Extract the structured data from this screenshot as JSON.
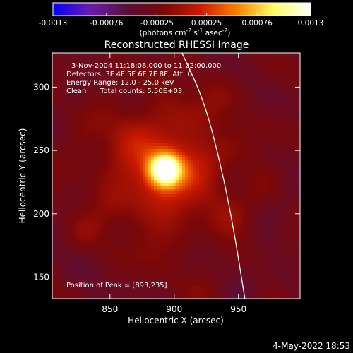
{
  "chart_data": {
    "type": "heatmap",
    "title": "Reconstructed RHESSI Image",
    "xlabel": "Heliocentric X (arcsec)",
    "ylabel": "Heliocentric Y (arcsec)",
    "xlim": [
      805,
      998
    ],
    "ylim": [
      133,
      327
    ],
    "x_ticks": [
      850,
      900,
      950
    ],
    "y_ticks": [
      150,
      200,
      250,
      300
    ],
    "x_tick_labels": [
      "850",
      "900",
      "950"
    ],
    "y_tick_labels": [
      "150",
      "200",
      "250",
      "300"
    ],
    "colorbar": {
      "min": -0.0013,
      "max": 0.0013,
      "ticks": [
        -0.0013,
        -0.00076,
        -0.00025,
        0.00025,
        0.00076,
        0.0013
      ],
      "tick_labels": [
        "-0.0013",
        "-0.00076",
        "-0.00025",
        "0.00025",
        "0.00076",
        "0.0013"
      ],
      "units_label": "(photons cm",
      "units_exp1": "-2",
      "units_mid": " s",
      "units_exp2": "-1",
      "units_end": " asec",
      "units_exp3": "-2",
      "units_close": ")",
      "stops": [
        "#0000ff",
        "#6a1bb0",
        "#5a0f3a",
        "#7a0808",
        "#cc1a00",
        "#ff7f00",
        "#ffff66",
        "#ffffff"
      ]
    },
    "annotations": {
      "time_range": "3-Nov-2004 11:18:08.000 to 11:22:00.000",
      "detectors": "Detectors: 3F 4F 5F 6F 7F 8F, Att: 0",
      "energy": "Energy Range: 12.0 - 25.0 keV",
      "clean": "Clean",
      "counts": "Total counts: 5.50E+03",
      "peak": "Position of Peak = [893,235]"
    },
    "peak": {
      "x": 893,
      "y": 235
    },
    "limb": [
      {
        "x": 906,
        "y": 327
      },
      {
        "x": 923,
        "y": 290
      },
      {
        "x": 936,
        "y": 240
      },
      {
        "x": 946,
        "y": 190
      },
      {
        "x": 955,
        "y": 133
      }
    ],
    "footer_date": "4-May-2022 18:53"
  }
}
